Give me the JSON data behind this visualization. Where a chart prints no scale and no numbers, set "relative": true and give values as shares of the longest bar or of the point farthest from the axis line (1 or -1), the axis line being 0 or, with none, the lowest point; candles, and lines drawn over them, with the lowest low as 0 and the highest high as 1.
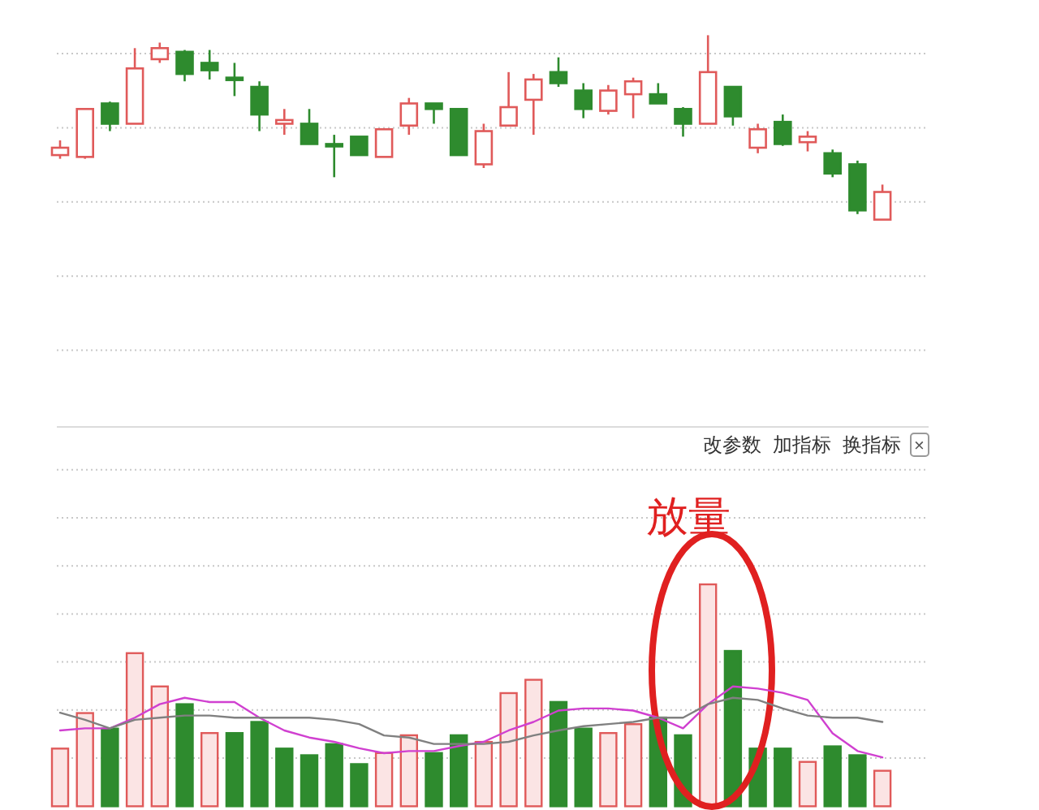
{
  "chart_data": [
    {
      "type": "candlestick",
      "relative": true,
      "grid": true,
      "categories": [
        null,
        null,
        null,
        null,
        null,
        null,
        null,
        null,
        null,
        null,
        null,
        null,
        null,
        null,
        null,
        null,
        null,
        null,
        null,
        null,
        null,
        null,
        null,
        null,
        null,
        null,
        null,
        null,
        null,
        null,
        null,
        null,
        null,
        null
      ],
      "ohlc": [
        [
          0.35,
          0.43,
          0.33,
          0.39
        ],
        [
          0.34,
          0.6,
          0.33,
          0.6
        ],
        [
          0.63,
          0.64,
          0.48,
          0.52
        ],
        [
          0.52,
          0.93,
          0.52,
          0.82
        ],
        [
          0.87,
          0.96,
          0.85,
          0.93
        ],
        [
          0.91,
          0.92,
          0.75,
          0.79
        ],
        [
          0.85,
          0.92,
          0.76,
          0.81
        ],
        [
          0.77,
          0.85,
          0.67,
          0.76
        ],
        [
          0.72,
          0.75,
          0.48,
          0.57
        ],
        [
          0.52,
          0.6,
          0.46,
          0.54
        ],
        [
          0.52,
          0.6,
          0.41,
          0.41
        ],
        [
          0.41,
          0.46,
          0.23,
          0.4
        ],
        [
          0.45,
          0.45,
          0.35,
          0.35
        ],
        [
          0.34,
          0.49,
          0.34,
          0.49
        ],
        [
          0.51,
          0.66,
          0.46,
          0.63
        ],
        [
          0.63,
          0.63,
          0.52,
          0.6
        ],
        [
          0.6,
          0.6,
          0.35,
          0.35
        ],
        [
          0.3,
          0.52,
          0.28,
          0.48
        ],
        [
          0.51,
          0.8,
          0.51,
          0.61
        ],
        [
          0.65,
          0.79,
          0.46,
          0.76
        ],
        [
          0.8,
          0.88,
          0.72,
          0.74
        ],
        [
          0.7,
          0.74,
          0.55,
          0.6
        ],
        [
          0.59,
          0.73,
          0.57,
          0.7
        ],
        [
          0.68,
          0.77,
          0.55,
          0.75
        ],
        [
          0.68,
          0.74,
          0.63,
          0.63
        ],
        [
          0.6,
          0.61,
          0.45,
          0.52
        ],
        [
          0.52,
          1.0,
          0.52,
          0.8
        ],
        [
          0.72,
          0.72,
          0.51,
          0.56
        ],
        [
          0.39,
          0.52,
          0.36,
          0.49
        ],
        [
          0.53,
          0.57,
          0.4,
          0.41
        ],
        [
          0.42,
          0.48,
          0.37,
          0.45
        ],
        [
          0.36,
          0.38,
          0.23,
          0.25
        ],
        [
          0.3,
          0.32,
          0.03,
          0.05
        ],
        [
          0.0,
          0.19,
          0.0,
          0.15
        ]
      ]
    },
    {
      "type": "bar",
      "relative": true,
      "grid": true,
      "categories": [
        null,
        null,
        null,
        null,
        null,
        null,
        null,
        null,
        null,
        null,
        null,
        null,
        null,
        null,
        null,
        null,
        null,
        null,
        null,
        null,
        null,
        null,
        null,
        null,
        null,
        null,
        null,
        null,
        null,
        null,
        null,
        null,
        null,
        null
      ],
      "values": [
        0.26,
        0.42,
        0.35,
        0.69,
        0.54,
        0.46,
        0.33,
        0.33,
        0.38,
        0.26,
        0.23,
        0.28,
        0.19,
        0.24,
        0.32,
        0.24,
        0.32,
        0.29,
        0.51,
        0.57,
        0.47,
        0.35,
        0.33,
        0.37,
        0.4,
        0.32,
        1.0,
        0.7,
        0.26,
        0.26,
        0.2,
        0.27,
        0.23,
        0.16
      ],
      "colors": [
        "#e05a5a",
        "#e05a5a",
        "#2e8b2e",
        "#e05a5a",
        "#e05a5a",
        "#2e8b2e",
        "#e05a5a",
        "#2e8b2e",
        "#2e8b2e",
        "#2e8b2e",
        "#2e8b2e",
        "#2e8b2e",
        "#2e8b2e",
        "#e05a5a",
        "#e05a5a",
        "#2e8b2e",
        "#2e8b2e",
        "#e05a5a",
        "#e05a5a",
        "#e05a5a",
        "#2e8b2e",
        "#2e8b2e",
        "#e05a5a",
        "#e05a5a",
        "#2e8b2e",
        "#2e8b2e",
        "#e05a5a",
        "#2e8b2e",
        "#2e8b2e",
        "#2e8b2e",
        "#e05a5a",
        "#2e8b2e",
        "#2e8b2e",
        "#e05a5a"
      ],
      "annotations": [
        "放量",
        "改参数",
        "加指标",
        "换指标",
        "×"
      ]
    },
    {
      "type": "line",
      "relative": true,
      "categories": [
        null,
        null,
        null,
        null,
        null,
        null,
        null,
        null,
        null,
        null,
        null,
        null,
        null,
        null,
        null,
        null,
        null,
        null,
        null,
        null,
        null,
        null,
        null,
        null,
        null,
        null,
        null,
        null,
        null,
        null,
        null,
        null,
        null,
        null
      ],
      "series": [
        {
          "color": "#d040d0",
          "values": [
            0.38,
            0.41,
            0.41,
            0.56,
            0.75,
            0.84,
            0.78,
            0.78,
            0.56,
            0.38,
            0.28,
            0.22,
            0.13,
            0.06,
            0.09,
            0.09,
            0.16,
            0.22,
            0.38,
            0.5,
            0.66,
            0.69,
            0.69,
            0.66,
            0.56,
            0.41,
            0.75,
            1.0,
            0.97,
            0.91,
            0.81,
            0.34,
            0.09,
            0.0
          ]
        },
        {
          "color": "#808080",
          "values": [
            0.63,
            0.53,
            0.41,
            0.53,
            0.56,
            0.59,
            0.59,
            0.56,
            0.56,
            0.56,
            0.56,
            0.53,
            0.47,
            0.31,
            0.28,
            0.19,
            0.19,
            0.19,
            0.22,
            0.31,
            0.38,
            0.44,
            0.47,
            0.5,
            0.56,
            0.56,
            0.75,
            0.84,
            0.81,
            0.69,
            0.59,
            0.56,
            0.56,
            0.5
          ]
        }
      ]
    }
  ]
}
